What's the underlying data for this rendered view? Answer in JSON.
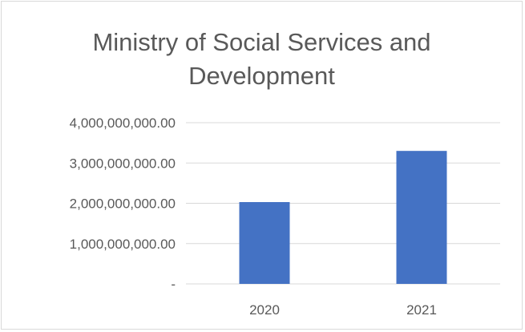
{
  "chart_data": {
    "type": "bar",
    "title": "Ministry of Social Services and\nDevelopment",
    "categories": [
      "2020",
      "2021"
    ],
    "values": [
      2030000000,
      3300000000
    ],
    "ylim": [
      0,
      4000000000
    ],
    "yticks": [
      {
        "value": 0,
        "label": "-"
      },
      {
        "value": 1000000000,
        "label": "1,000,000,000.00"
      },
      {
        "value": 2000000000,
        "label": "2,000,000,000.00"
      },
      {
        "value": 3000000000,
        "label": "3,000,000,000.00"
      },
      {
        "value": 4000000000,
        "label": "4,000,000,000.00"
      }
    ],
    "grid": true,
    "bar_color": "#4472c4",
    "grid_color": "#d9d9d9"
  }
}
